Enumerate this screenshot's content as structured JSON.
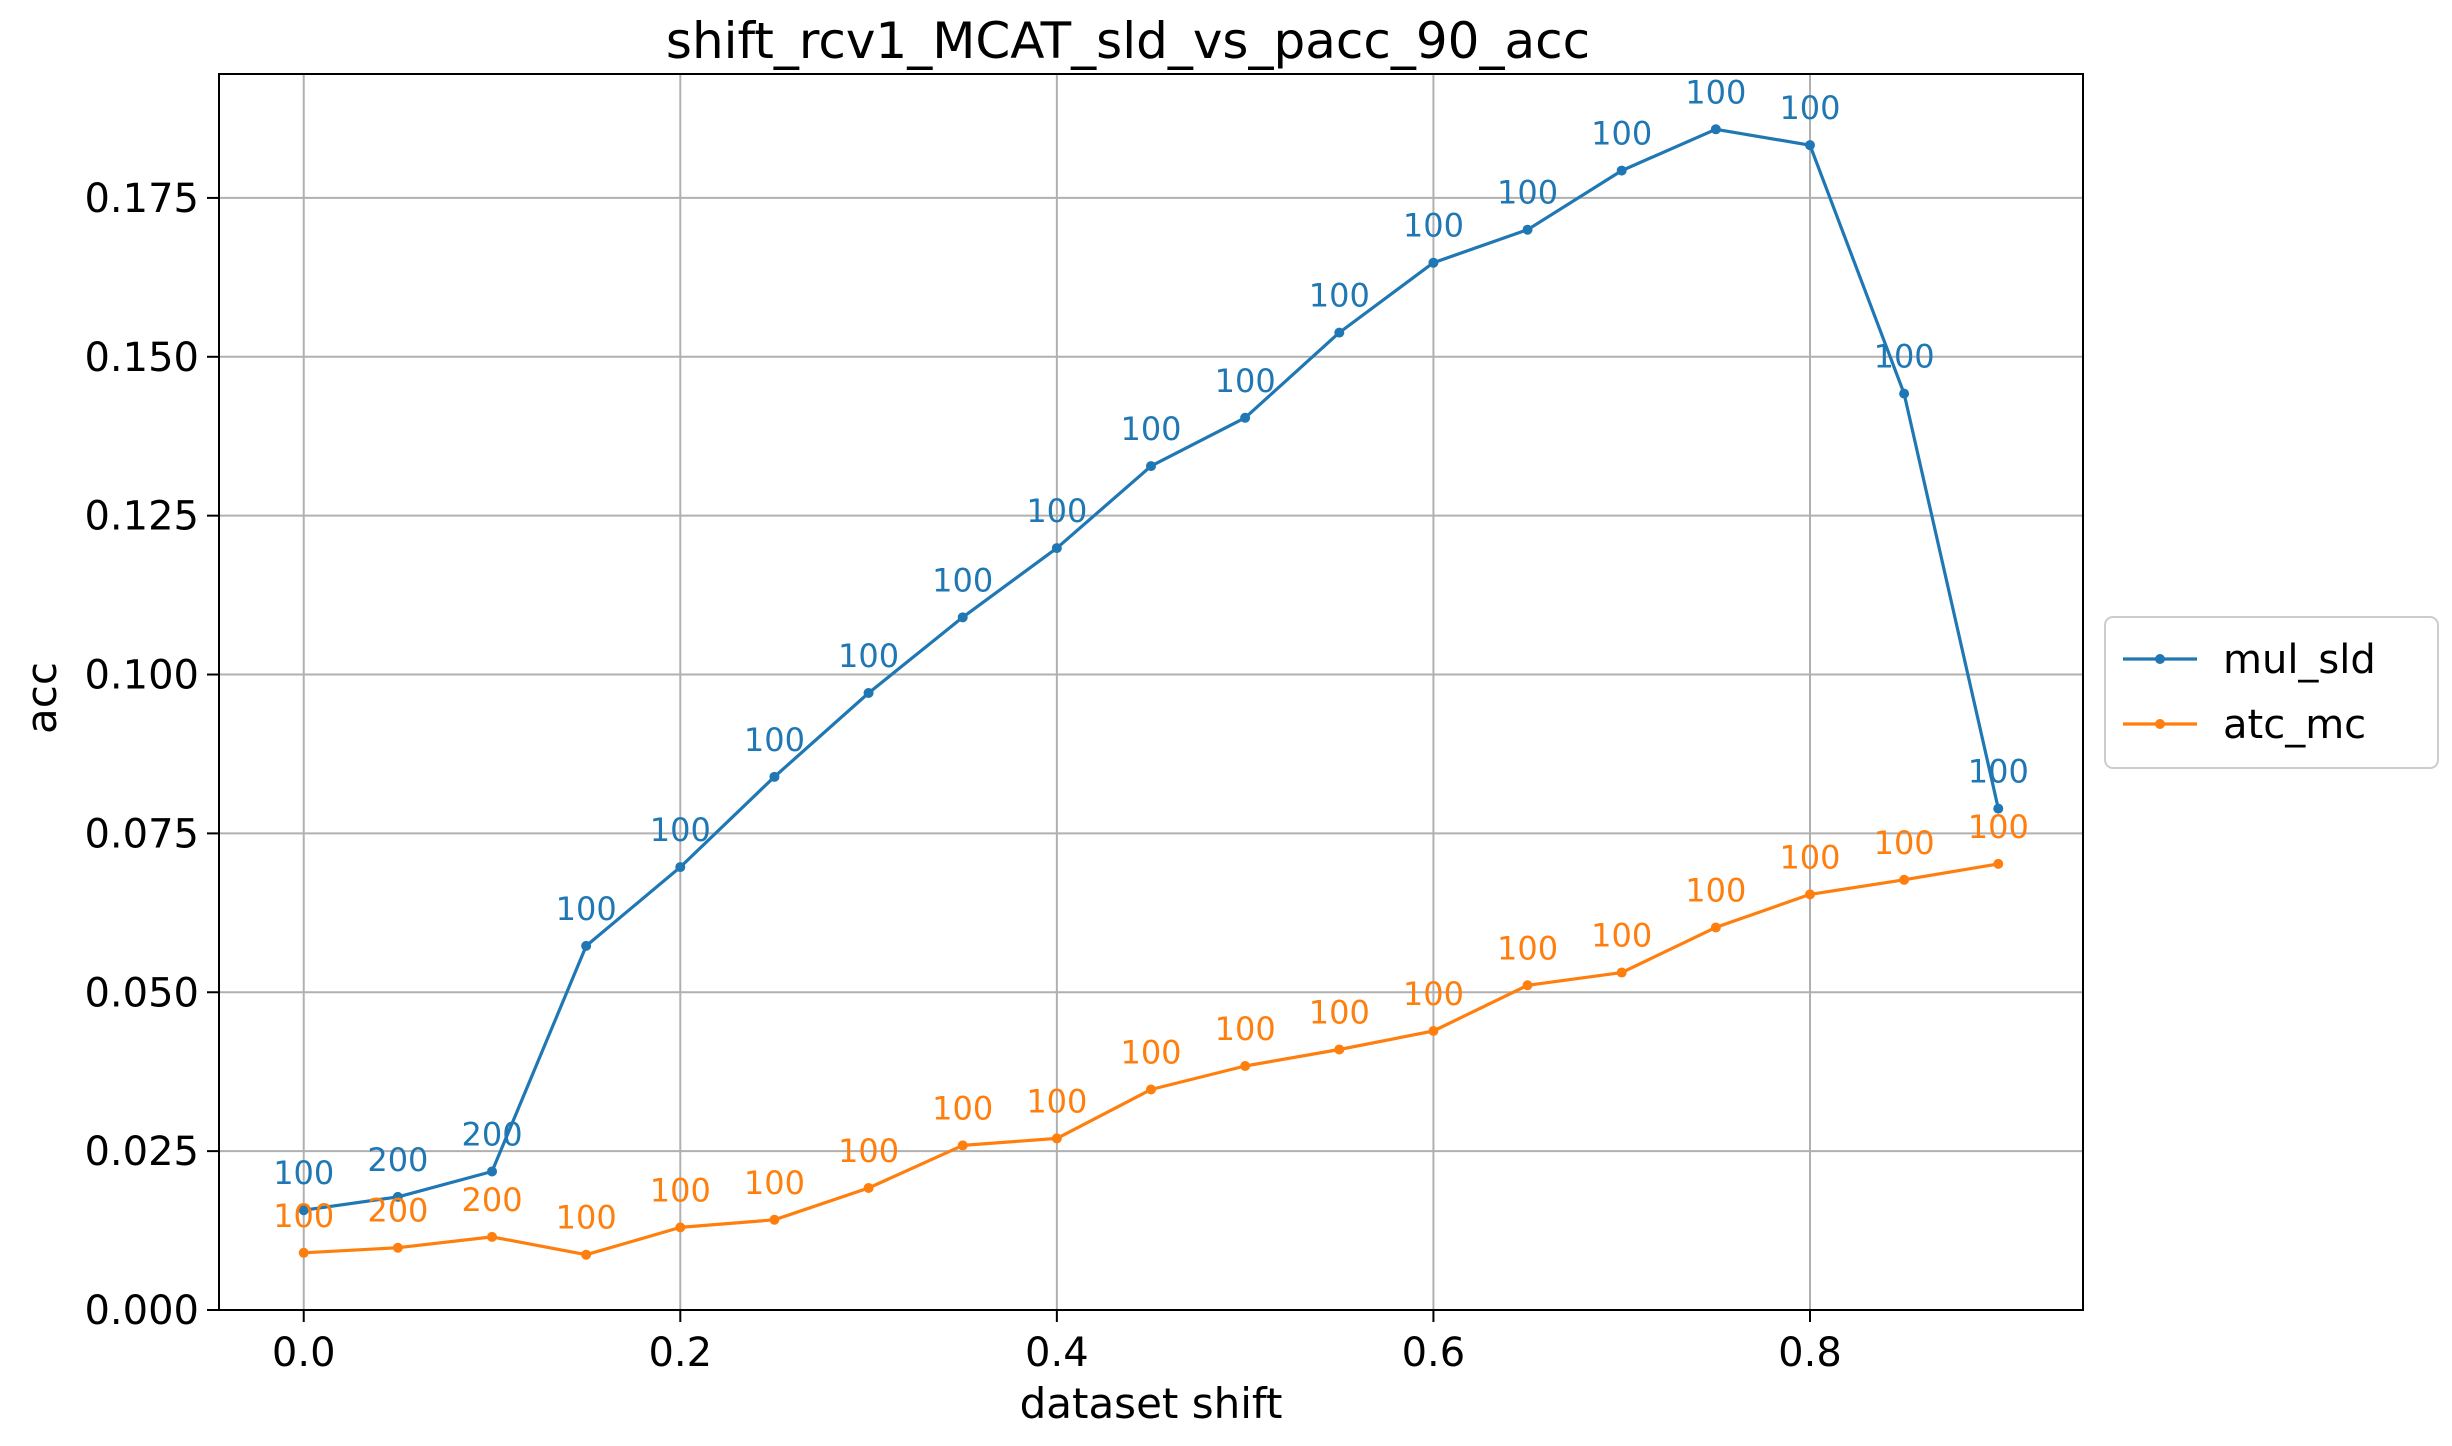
{
  "chart_data": {
    "type": "line",
    "title": "shift_rcv1_MCAT_sld_vs_pacc_90_acc",
    "xlabel": "dataset shift",
    "ylabel": "acc",
    "xlim": [
      -0.045,
      0.945
    ],
    "ylim": [
      0.0,
      0.1945
    ],
    "xticks": [
      0.0,
      0.2,
      0.4,
      0.6,
      0.8
    ],
    "xtick_labels": [
      "0.0",
      "0.2",
      "0.4",
      "0.6",
      "0.8"
    ],
    "yticks": [
      0.0,
      0.025,
      0.05,
      0.075,
      0.1,
      0.125,
      0.15,
      0.175
    ],
    "ytick_labels": [
      "0.000",
      "0.025",
      "0.050",
      "0.075",
      "0.100",
      "0.125",
      "0.150",
      "0.175"
    ],
    "grid": true,
    "legend_position": "right",
    "x": [
      0.0,
      0.05,
      0.1,
      0.15,
      0.2,
      0.25,
      0.3,
      0.35,
      0.4,
      0.45,
      0.5,
      0.55,
      0.6,
      0.65,
      0.7,
      0.75,
      0.8,
      0.85,
      0.9
    ],
    "series": [
      {
        "name": "mul_sld",
        "color": "#1f77b4",
        "values": [
          0.0157,
          0.0178,
          0.0218,
          0.0573,
          0.0697,
          0.0839,
          0.0971,
          0.109,
          0.1199,
          0.1328,
          0.1404,
          0.1538,
          0.1648,
          0.17,
          0.1793,
          0.1858,
          0.1833,
          0.1442,
          0.0789
        ],
        "labels": [
          "100",
          "200",
          "200",
          "100",
          "100",
          "100",
          "100",
          "100",
          "100",
          "100",
          "100",
          "100",
          "100",
          "100",
          "100",
          "100",
          "100",
          "100",
          "100"
        ]
      },
      {
        "name": "atc_mc",
        "color": "#ff7f0e",
        "values": [
          0.009,
          0.0098,
          0.0115,
          0.0087,
          0.013,
          0.0142,
          0.0192,
          0.0259,
          0.027,
          0.0347,
          0.0384,
          0.041,
          0.0439,
          0.0511,
          0.0531,
          0.0602,
          0.0654,
          0.0677,
          0.0702
        ],
        "labels": [
          "100",
          "200",
          "200",
          "100",
          "100",
          "100",
          "100",
          "100",
          "100",
          "100",
          "100",
          "100",
          "100",
          "100",
          "100",
          "100",
          "100",
          "100",
          "100"
        ]
      }
    ]
  }
}
